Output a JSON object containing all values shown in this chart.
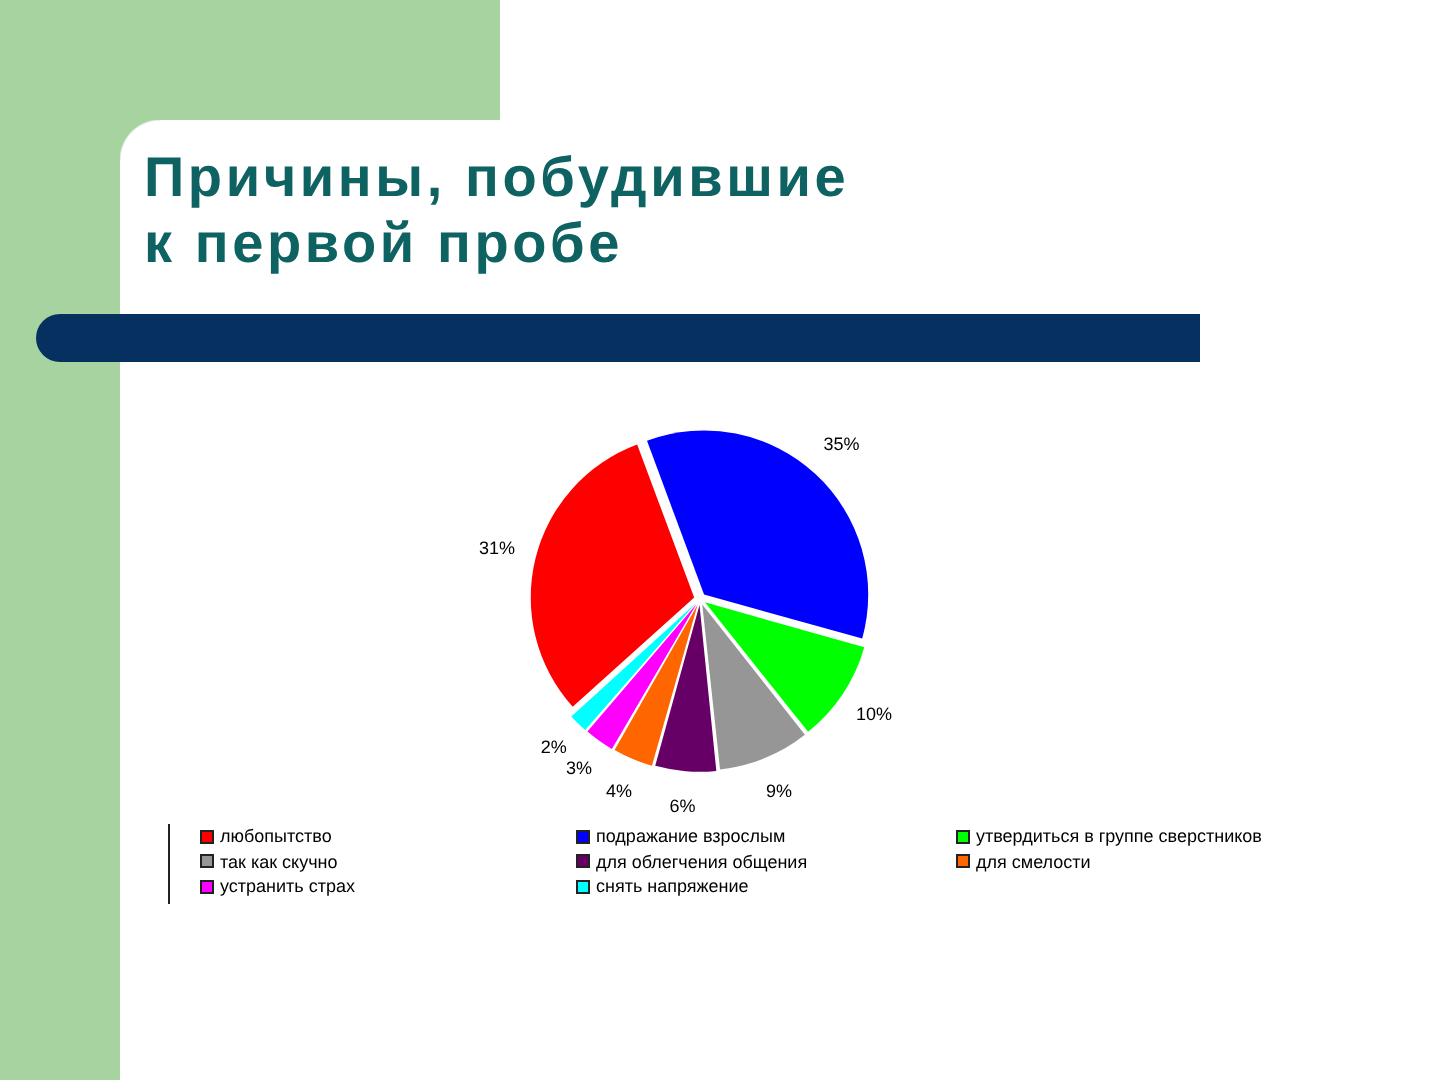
{
  "chart_data": {
    "type": "pie",
    "title": "Причины, побудившие\nк первой пробе",
    "categories": [
      "любопытство",
      "подражание взрослым",
      "утвердиться в группе сверстников",
      "так как скучно",
      "для облегчения общения",
      "для смелости",
      "устранить страх",
      "снять напряжение"
    ],
    "values": [
      31,
      35,
      10,
      9,
      6,
      4,
      3,
      2
    ],
    "colors": [
      "#ff0000",
      "#0000ff",
      "#00ff00",
      "#969696",
      "#660066",
      "#ff6600",
      "#ff00ff",
      "#00ffff"
    ],
    "value_labels": [
      "31%",
      "35%",
      "10%",
      "9%",
      "6%",
      "4%",
      "3%",
      "2%"
    ],
    "legend": "bottom"
  }
}
